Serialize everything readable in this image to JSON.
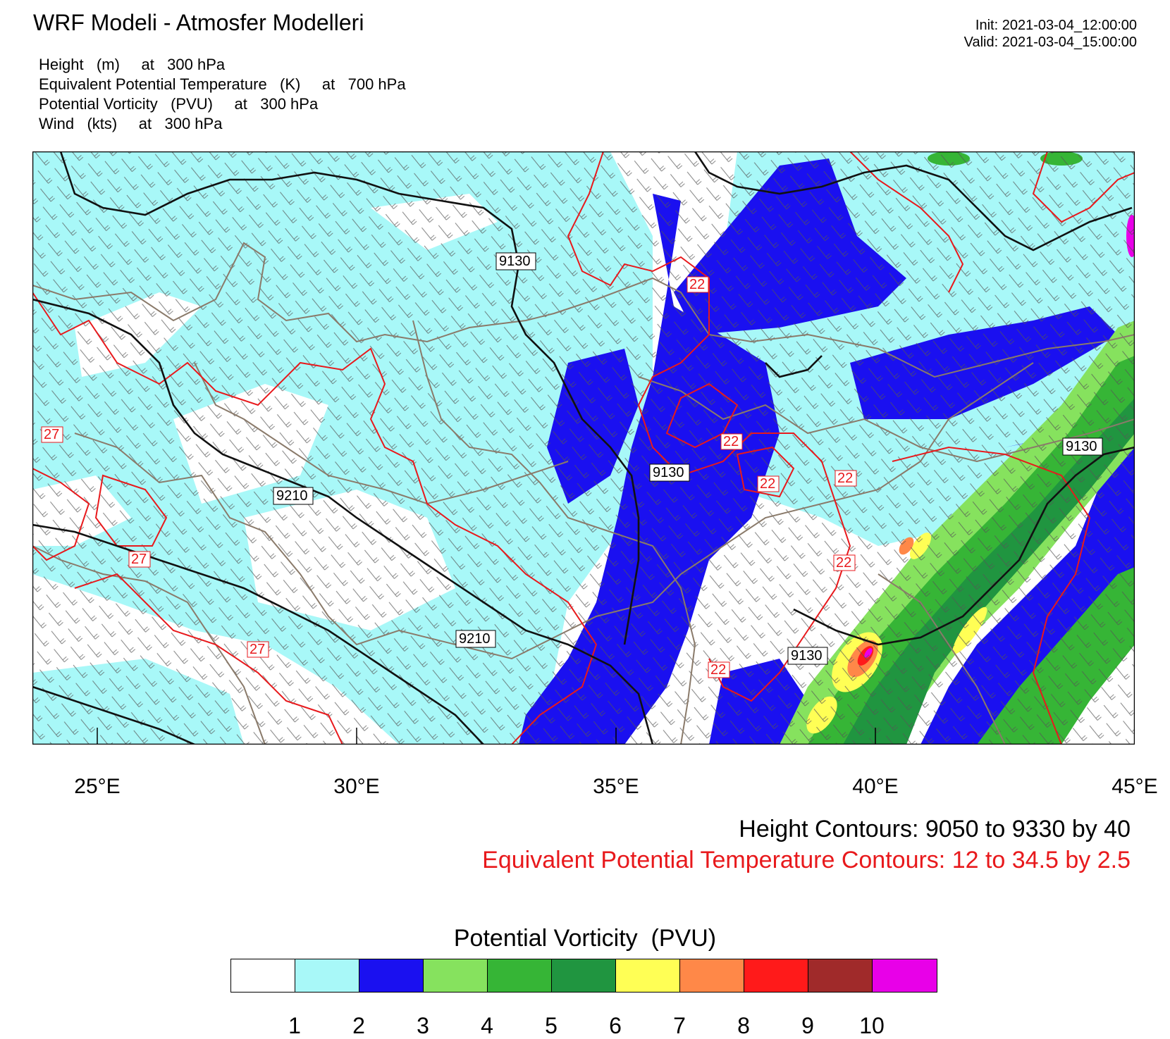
{
  "header": {
    "title": "WRF Modeli - Atmosfer Modelleri",
    "fields": [
      "Height   (m)     at   300 hPa",
      "Equivalent Potential Temperature   (K)     at   700 hPa",
      "Potential Vorticity   (PVU)     at   300 hPa",
      "Wind   (kts)     at   300 hPa"
    ],
    "init": "Init: 2021-03-04_12:00:00",
    "valid": "Valid: 2021-03-04_15:00:00"
  },
  "map": {
    "lon_range": [
      23.75,
      45
    ],
    "lon_ticks": [
      {
        "value": 25,
        "label": "25°E"
      },
      {
        "value": 30,
        "label": "30°E"
      },
      {
        "value": 35,
        "label": "35°E"
      },
      {
        "value": 40,
        "label": "40°E"
      },
      {
        "value": 45,
        "label": "45°E"
      }
    ],
    "height_contour_labels": [
      "9130",
      "9210",
      "9130",
      "9210",
      "9130",
      "9130"
    ],
    "theta_e_contour_labels": [
      "22",
      "27",
      "22",
      "22",
      "22",
      "27",
      "22",
      "27",
      "22"
    ]
  },
  "contours": {
    "height": "Height Contours: 9050 to 9330 by 40",
    "theta_e": "Equivalent Potential Temperature Contours: 12 to 34.5 by 2.5",
    "height_color": "#000000",
    "theta_e_color": "#e8191c"
  },
  "colorbar": {
    "title": "Potential Vorticity  (PVU)",
    "colors": [
      "#ffffff",
      "#a8f8f8",
      "#1a10f0",
      "#86e25e",
      "#36b536",
      "#209540",
      "#ffff55",
      "#ff8848",
      "#ff1a1a",
      "#a02a2a",
      "#e800e8"
    ],
    "ticks": [
      "1",
      "2",
      "3",
      "4",
      "5",
      "6",
      "7",
      "8",
      "9",
      "10"
    ]
  }
}
